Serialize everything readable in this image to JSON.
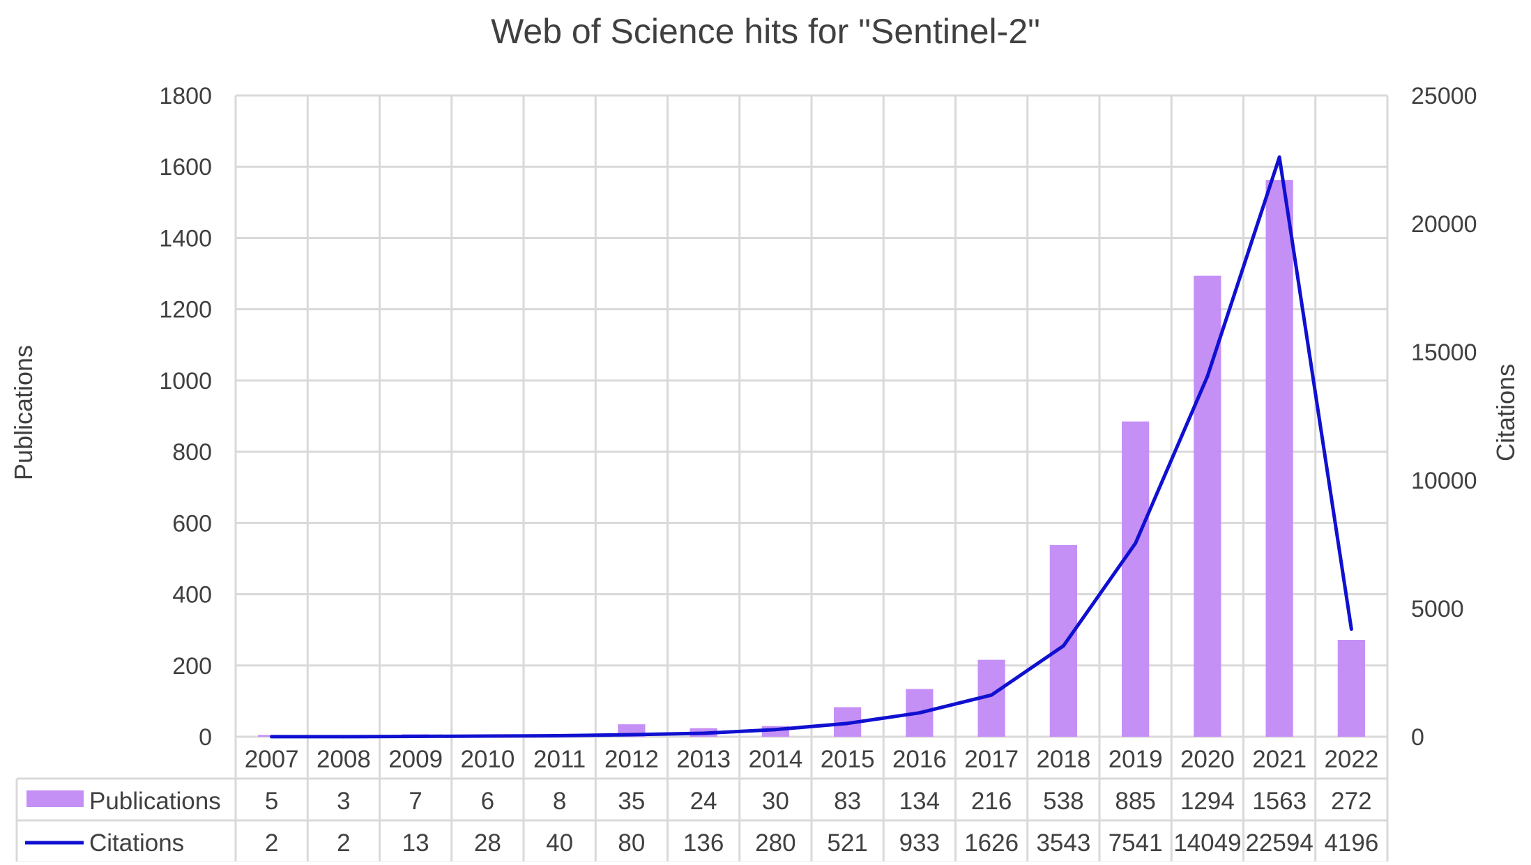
{
  "chart_data": {
    "type": "bar",
    "title": "Web of Science hits for \"Sentinel-2\"",
    "categories": [
      "2007",
      "2008",
      "2009",
      "2010",
      "2011",
      "2012",
      "2013",
      "2014",
      "2015",
      "2016",
      "2017",
      "2018",
      "2019",
      "2020",
      "2021",
      "2022"
    ],
    "series": [
      {
        "name": "Publications",
        "type": "bar",
        "axis": "left",
        "color": "#c490f6",
        "values": [
          5,
          3,
          7,
          6,
          8,
          35,
          24,
          30,
          83,
          134,
          216,
          538,
          885,
          1294,
          1563,
          272
        ]
      },
      {
        "name": "Citations",
        "type": "line",
        "axis": "right",
        "color": "#1010d0",
        "values": [
          2,
          2,
          13,
          28,
          40,
          80,
          136,
          280,
          521,
          933,
          1626,
          3543,
          7541,
          14049,
          22594,
          4196
        ]
      }
    ],
    "ylabel": "Publications",
    "y2label": "Citations",
    "ylim": [
      0,
      1800
    ],
    "y2lim": [
      0,
      25000
    ],
    "yticks": [
      0,
      200,
      400,
      600,
      800,
      1000,
      1200,
      1400,
      1600,
      1800
    ],
    "y2ticks": [
      0,
      5000,
      10000,
      15000,
      20000,
      25000
    ],
    "grid": true,
    "legend": "data-table",
    "data_table": true
  }
}
